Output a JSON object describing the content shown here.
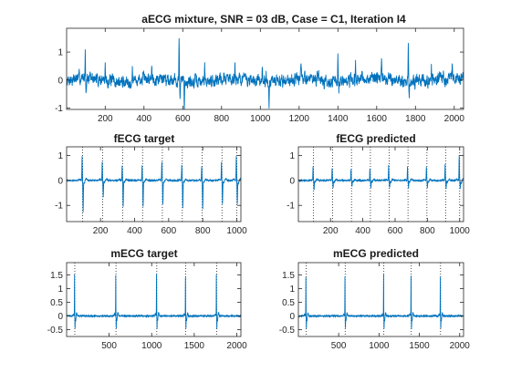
{
  "chart_data": [
    {
      "id": "mix",
      "type": "line",
      "title": "aECG mixture, SNR = 03 dB, Case = C1, Iteration I4",
      "xlim": [
        1,
        2048
      ],
      "ylim": [
        -1.05,
        1.85
      ],
      "xticks": [
        200,
        400,
        600,
        800,
        1000,
        1200,
        1400,
        1600,
        1800,
        2000
      ],
      "yticks": [
        -1,
        0,
        1
      ],
      "grid": false,
      "color": "#0072BD",
      "series": [
        {
          "noise_amplitude": 0.16,
          "peaks": [
            {
              "x": 97,
              "y": 1.02,
              "min": -0.45
            },
            {
              "x": 200,
              "y": 0.5
            },
            {
              "x": 340,
              "y": 0.5
            },
            {
              "x": 440,
              "y": 0.55
            },
            {
              "x": 581,
              "y": 1.45,
              "min": -0.7
            },
            {
              "x": 608,
              "y": -1.0
            },
            {
              "x": 713,
              "y": 0.55
            },
            {
              "x": 869,
              "y": 0.5
            },
            {
              "x": 1010,
              "y": 0.5
            },
            {
              "x": 1030,
              "y": 0.55
            },
            {
              "x": 1045,
              "y": -0.78
            },
            {
              "x": 1210,
              "y": 0.5
            },
            {
              "x": 1400,
              "y": 1.03,
              "min": -0.35
            },
            {
              "x": 1491,
              "y": 0.5
            },
            {
              "x": 1625,
              "y": 0.55
            },
            {
              "x": 1763,
              "y": 1.5,
              "min": -0.75
            },
            {
              "x": 1882,
              "y": 0.5
            },
            {
              "x": 1990,
              "y": 0.5
            }
          ]
        }
      ]
    },
    {
      "id": "ft",
      "type": "line",
      "title": "fECG target",
      "xlim": [
        1,
        1024
      ],
      "ylim": [
        -1.65,
        1.35
      ],
      "xticks": [
        200,
        400,
        600,
        800,
        1000
      ],
      "yticks": [
        -1,
        0,
        1
      ],
      "grid": false,
      "color": "#0072BD",
      "markers": [
        95,
        213,
        330,
        447,
        563,
        680,
        797,
        913,
        1000
      ],
      "series": [
        {
          "beats": [
            {
              "x": 95,
              "up": 0.95,
              "down": -1.25
            },
            {
              "x": 213,
              "up": 0.75,
              "down": -0.65
            },
            {
              "x": 330,
              "up": 0.6,
              "down": -1.05
            },
            {
              "x": 447,
              "up": 0.6,
              "down": -1.05
            },
            {
              "x": 563,
              "up": 0.75,
              "down": -0.95
            },
            {
              "x": 680,
              "up": 0.6,
              "down": -1.1
            },
            {
              "x": 797,
              "up": 0.55,
              "down": -1.15
            },
            {
              "x": 913,
              "up": 0.75,
              "down": -0.95
            },
            {
              "x": 1000,
              "up": 1.0,
              "down": -0.95
            }
          ]
        }
      ]
    },
    {
      "id": "fp",
      "type": "line",
      "title": "fECG predicted",
      "xlim": [
        1,
        1024
      ],
      "ylim": [
        -1.65,
        1.35
      ],
      "xticks": [
        200,
        400,
        600,
        800,
        1000
      ],
      "yticks": [
        -1,
        0,
        1
      ],
      "grid": false,
      "color": "#0072BD",
      "markers": [
        95,
        213,
        330,
        447,
        563,
        680,
        797,
        913,
        1000
      ],
      "series": [
        {
          "beats": [
            {
              "x": 95,
              "up": 0.55,
              "down": -0.4
            },
            {
              "x": 213,
              "up": 0.5,
              "down": -0.3
            },
            {
              "x": 330,
              "up": 0.45,
              "down": -0.25
            },
            {
              "x": 447,
              "up": 0.5,
              "down": -0.3
            },
            {
              "x": 563,
              "up": 0.6,
              "down": -0.3
            },
            {
              "x": 680,
              "up": 0.55,
              "down": -0.3
            },
            {
              "x": 797,
              "up": 0.55,
              "down": -0.3
            },
            {
              "x": 913,
              "up": 0.65,
              "down": -0.35
            },
            {
              "x": 1000,
              "up": 1.0,
              "down": -0.35
            }
          ]
        }
      ]
    },
    {
      "id": "mt",
      "type": "line",
      "title": "mECG target",
      "xlim": [
        1,
        2048
      ],
      "ylim": [
        -0.75,
        1.95
      ],
      "xticks": [
        500,
        1000,
        1500,
        2000
      ],
      "yticks": [
        -0.5,
        0,
        0.5,
        1,
        1.5
      ],
      "grid": false,
      "color": "#0072BD",
      "markers": [
        97,
        581,
        1060,
        1400,
        1763
      ],
      "series": [
        {
          "beats": [
            {
              "x": 97,
              "up": 1.5,
              "down": -0.45
            },
            {
              "x": 581,
              "up": 1.5,
              "down": -0.45
            },
            {
              "x": 1060,
              "up": 1.55,
              "down": -0.45
            },
            {
              "x": 1400,
              "up": 1.45,
              "down": -0.45
            },
            {
              "x": 1763,
              "up": 1.5,
              "down": -0.45
            }
          ]
        }
      ]
    },
    {
      "id": "mp",
      "type": "line",
      "title": "mECG predicted",
      "xlim": [
        1,
        2048
      ],
      "ylim": [
        -0.75,
        1.95
      ],
      "xticks": [
        500,
        1000,
        1500,
        2000
      ],
      "yticks": [
        -0.5,
        0,
        0.5,
        1,
        1.5
      ],
      "grid": false,
      "color": "#0072BD",
      "markers": [
        97,
        581,
        1060,
        1400,
        1763
      ],
      "series": [
        {
          "beats": [
            {
              "x": 97,
              "up": 1.45,
              "down": -0.45
            },
            {
              "x": 581,
              "up": 1.45,
              "down": -0.45
            },
            {
              "x": 1060,
              "up": 1.5,
              "down": -0.45
            },
            {
              "x": 1400,
              "up": 1.45,
              "down": -0.45
            },
            {
              "x": 1763,
              "up": 1.45,
              "down": -0.45
            }
          ]
        }
      ]
    }
  ]
}
